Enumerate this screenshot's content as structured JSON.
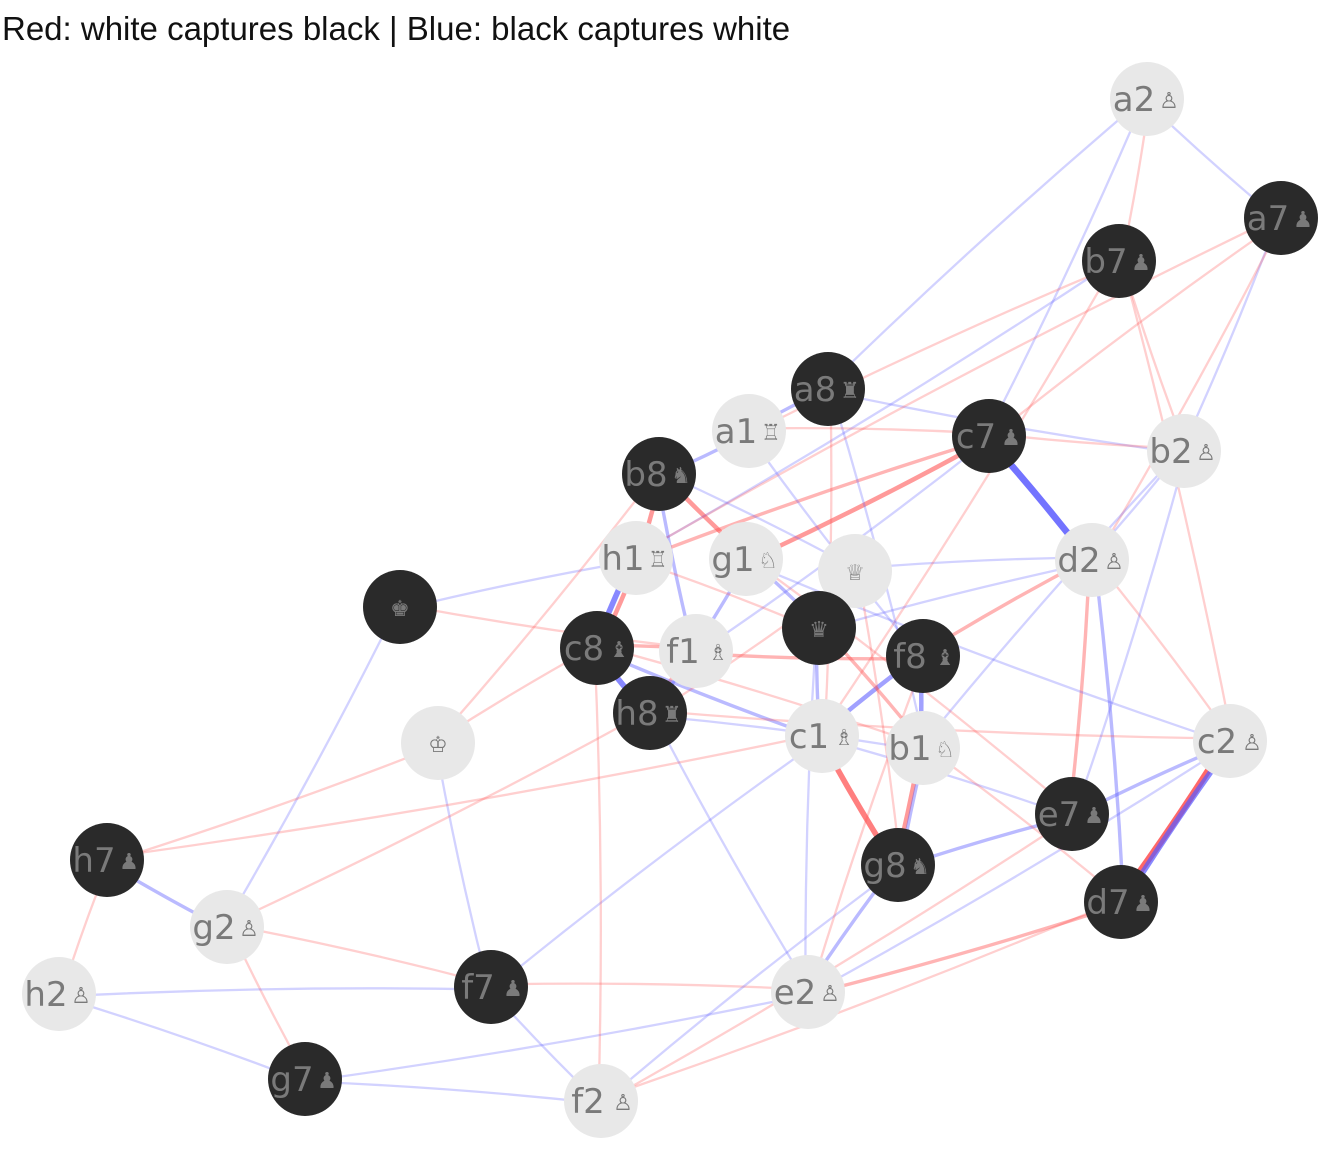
{
  "title": "Red: white captures black | Blue: black captures white",
  "colors": {
    "white_node": "#e8e8e8",
    "black_node": "#2a2a2a",
    "label": "#7a7a7a",
    "white_captures": "#ff4d4d",
    "black_captures": "#5a5aff"
  },
  "nodes": [
    {
      "id": "a2",
      "label": "a2",
      "glyph": "♙",
      "side": "white"
    },
    {
      "id": "a7",
      "label": "a7",
      "glyph": "♟",
      "side": "black"
    },
    {
      "id": "b7",
      "label": "b7",
      "glyph": "♟",
      "side": "black"
    },
    {
      "id": "a8",
      "label": "a8",
      "glyph": "♜",
      "side": "black"
    },
    {
      "id": "a1",
      "label": "a1",
      "glyph": "♖",
      "side": "white"
    },
    {
      "id": "c7",
      "label": "c7",
      "glyph": "♟",
      "side": "black"
    },
    {
      "id": "b2",
      "label": "b2",
      "glyph": "♙",
      "side": "white"
    },
    {
      "id": "b8",
      "label": "b8",
      "glyph": "♞",
      "side": "black"
    },
    {
      "id": "h1",
      "label": "h1",
      "glyph": "♖",
      "side": "white"
    },
    {
      "id": "g1",
      "label": "g1",
      "glyph": "♘",
      "side": "white"
    },
    {
      "id": "wq",
      "label": "",
      "glyph": "♕",
      "side": "white"
    },
    {
      "id": "d2",
      "label": "d2",
      "glyph": "♙",
      "side": "white"
    },
    {
      "id": "bk",
      "label": "",
      "glyph": "♚",
      "side": "black"
    },
    {
      "id": "c8",
      "label": "c8",
      "glyph": "♝",
      "side": "black"
    },
    {
      "id": "f1",
      "label": "f1",
      "glyph": "♗",
      "side": "white"
    },
    {
      "id": "bq",
      "label": "",
      "glyph": "♛",
      "side": "black"
    },
    {
      "id": "f8",
      "label": "f8",
      "glyph": "♝",
      "side": "black"
    },
    {
      "id": "h8",
      "label": "h8",
      "glyph": "♜",
      "side": "black"
    },
    {
      "id": "wk",
      "label": "",
      "glyph": "♔",
      "side": "white"
    },
    {
      "id": "c1",
      "label": "c1",
      "glyph": "♗",
      "side": "white"
    },
    {
      "id": "b1",
      "label": "b1",
      "glyph": "♘",
      "side": "white"
    },
    {
      "id": "c2",
      "label": "c2",
      "glyph": "♙",
      "side": "white"
    },
    {
      "id": "e7",
      "label": "e7",
      "glyph": "♟",
      "side": "black"
    },
    {
      "id": "h7",
      "label": "h7",
      "glyph": "♟",
      "side": "black"
    },
    {
      "id": "g8",
      "label": "g8",
      "glyph": "♞",
      "side": "black"
    },
    {
      "id": "d7",
      "label": "d7",
      "glyph": "♟",
      "side": "black"
    },
    {
      "id": "g2",
      "label": "g2",
      "glyph": "♙",
      "side": "white"
    },
    {
      "id": "h2",
      "label": "h2",
      "glyph": "♙",
      "side": "white"
    },
    {
      "id": "f7",
      "label": "f7",
      "glyph": "♟",
      "side": "black"
    },
    {
      "id": "e2",
      "label": "e2",
      "glyph": "♙",
      "side": "white"
    },
    {
      "id": "g7",
      "label": "g7",
      "glyph": "♟",
      "side": "black"
    },
    {
      "id": "f2",
      "label": "f2",
      "glyph": "♙",
      "side": "white"
    }
  ],
  "edges": [
    {
      "from": "c7",
      "to": "d2",
      "kind": "black",
      "weight": 5
    },
    {
      "from": "d7",
      "to": "c2",
      "kind": "white",
      "weight": 5
    },
    {
      "from": "d7",
      "to": "c2",
      "kind": "black",
      "weight": 4
    },
    {
      "from": "h1",
      "to": "c8",
      "kind": "black",
      "weight": 4
    },
    {
      "from": "h1",
      "to": "c8",
      "kind": "white",
      "weight": 3
    },
    {
      "from": "c8",
      "to": "h8",
      "kind": "black",
      "weight": 4
    },
    {
      "from": "g8",
      "to": "c1",
      "kind": "white",
      "weight": 4
    },
    {
      "from": "f8",
      "to": "c1",
      "kind": "black",
      "weight": 3
    },
    {
      "from": "f8",
      "to": "b1",
      "kind": "black",
      "weight": 3
    },
    {
      "from": "g8",
      "to": "b1",
      "kind": "white",
      "weight": 3
    },
    {
      "from": "g8",
      "to": "b1",
      "kind": "black",
      "weight": 2
    },
    {
      "from": "b8",
      "to": "g1",
      "kind": "white",
      "weight": 3
    },
    {
      "from": "b8",
      "to": "h1",
      "kind": "white",
      "weight": 3
    },
    {
      "from": "b8",
      "to": "f1",
      "kind": "black",
      "weight": 2
    },
    {
      "from": "c7",
      "to": "g1",
      "kind": "white",
      "weight": 3
    },
    {
      "from": "c7",
      "to": "h1",
      "kind": "white",
      "weight": 2
    },
    {
      "from": "a8",
      "to": "a1",
      "kind": "black",
      "weight": 2
    },
    {
      "from": "b8",
      "to": "a1",
      "kind": "black",
      "weight": 2
    },
    {
      "from": "e7",
      "to": "c2",
      "kind": "black",
      "weight": 2
    },
    {
      "from": "e7",
      "to": "d2",
      "kind": "white",
      "weight": 2
    },
    {
      "from": "d7",
      "to": "e2",
      "kind": "white",
      "weight": 2
    },
    {
      "from": "g8",
      "to": "e2",
      "kind": "black",
      "weight": 2
    },
    {
      "from": "g8",
      "to": "e7",
      "kind": "black",
      "weight": 2
    },
    {
      "from": "d7",
      "to": "d2",
      "kind": "black",
      "weight": 2
    },
    {
      "from": "f8",
      "to": "d2",
      "kind": "white",
      "weight": 2
    },
    {
      "from": "bq",
      "to": "c1",
      "kind": "black",
      "weight": 2
    },
    {
      "from": "bq",
      "to": "b1",
      "kind": "white",
      "weight": 2
    },
    {
      "from": "bq",
      "to": "g1",
      "kind": "black",
      "weight": 2
    },
    {
      "from": "h8",
      "to": "f1",
      "kind": "white",
      "weight": 2
    },
    {
      "from": "h8",
      "to": "g1",
      "kind": "black",
      "weight": 2
    },
    {
      "from": "c8",
      "to": "f1",
      "kind": "white",
      "weight": 2
    },
    {
      "from": "c8",
      "to": "c1",
      "kind": "black",
      "weight": 2
    },
    {
      "from": "f8",
      "to": "f1",
      "kind": "white",
      "weight": 2
    },
    {
      "from": "h7",
      "to": "g2",
      "kind": "black",
      "weight": 2
    },
    {
      "from": "a2",
      "to": "b7",
      "kind": "white",
      "weight": 1
    },
    {
      "from": "a2",
      "to": "a7",
      "kind": "black",
      "weight": 1
    },
    {
      "from": "a2",
      "to": "c7",
      "kind": "black",
      "weight": 1
    },
    {
      "from": "a2",
      "to": "a8",
      "kind": "black",
      "weight": 1
    },
    {
      "from": "a7",
      "to": "b2",
      "kind": "black",
      "weight": 1
    },
    {
      "from": "a7",
      "to": "c7",
      "kind": "white",
      "weight": 1
    },
    {
      "from": "a7",
      "to": "d2",
      "kind": "white",
      "weight": 1
    },
    {
      "from": "b7",
      "to": "a1",
      "kind": "white",
      "weight": 1
    },
    {
      "from": "b7",
      "to": "c2",
      "kind": "white",
      "weight": 1
    },
    {
      "from": "b7",
      "to": "b2",
      "kind": "white",
      "weight": 1
    },
    {
      "from": "b7",
      "to": "h1",
      "kind": "black",
      "weight": 1
    },
    {
      "from": "a8",
      "to": "b2",
      "kind": "black",
      "weight": 1
    },
    {
      "from": "a8",
      "to": "c1",
      "kind": "white",
      "weight": 1
    },
    {
      "from": "c7",
      "to": "b2",
      "kind": "white",
      "weight": 1
    },
    {
      "from": "b2",
      "to": "d2",
      "kind": "black",
      "weight": 1
    },
    {
      "from": "b2",
      "to": "b1",
      "kind": "black",
      "weight": 1
    },
    {
      "from": "d2",
      "to": "c2",
      "kind": "white",
      "weight": 1
    },
    {
      "from": "d2",
      "to": "wq",
      "kind": "black",
      "weight": 1
    },
    {
      "from": "bk",
      "to": "h1",
      "kind": "black",
      "weight": 1
    },
    {
      "from": "bk",
      "to": "f1",
      "kind": "white",
      "weight": 1
    },
    {
      "from": "bk",
      "to": "g2",
      "kind": "black",
      "weight": 1
    },
    {
      "from": "wk",
      "to": "b8",
      "kind": "white",
      "weight": 1
    },
    {
      "from": "wk",
      "to": "h7",
      "kind": "white",
      "weight": 1
    },
    {
      "from": "wk",
      "to": "f7",
      "kind": "black",
      "weight": 1
    },
    {
      "from": "wk",
      "to": "c8",
      "kind": "white",
      "weight": 1
    },
    {
      "from": "h7",
      "to": "h2",
      "kind": "white",
      "weight": 1
    },
    {
      "from": "h2",
      "to": "g7",
      "kind": "black",
      "weight": 1
    },
    {
      "from": "g2",
      "to": "g7",
      "kind": "white",
      "weight": 1
    },
    {
      "from": "g2",
      "to": "f7",
      "kind": "white",
      "weight": 1
    },
    {
      "from": "g2",
      "to": "h8",
      "kind": "white",
      "weight": 1
    },
    {
      "from": "g7",
      "to": "f2",
      "kind": "black",
      "weight": 1
    },
    {
      "from": "g7",
      "to": "e2",
      "kind": "black",
      "weight": 1
    },
    {
      "from": "f7",
      "to": "e2",
      "kind": "white",
      "weight": 1
    },
    {
      "from": "f7",
      "to": "f2",
      "kind": "black",
      "weight": 1
    },
    {
      "from": "f7",
      "to": "c1",
      "kind": "black",
      "weight": 1
    },
    {
      "from": "f2",
      "to": "d7",
      "kind": "white",
      "weight": 1
    },
    {
      "from": "f2",
      "to": "g8",
      "kind": "black",
      "weight": 1
    },
    {
      "from": "f2",
      "to": "c8",
      "kind": "white",
      "weight": 1
    },
    {
      "from": "e2",
      "to": "h8",
      "kind": "black",
      "weight": 1
    },
    {
      "from": "e2",
      "to": "c2",
      "kind": "black",
      "weight": 1
    },
    {
      "from": "c1",
      "to": "e7",
      "kind": "black",
      "weight": 1
    },
    {
      "from": "c1",
      "to": "b7",
      "kind": "white",
      "weight": 1
    },
    {
      "from": "b1",
      "to": "d7",
      "kind": "white",
      "weight": 1
    },
    {
      "from": "b1",
      "to": "a8",
      "kind": "black",
      "weight": 1
    },
    {
      "from": "g1",
      "to": "e7",
      "kind": "white",
      "weight": 1
    },
    {
      "from": "g1",
      "to": "c2",
      "kind": "black",
      "weight": 1
    },
    {
      "from": "h1",
      "to": "a7",
      "kind": "white",
      "weight": 1
    },
    {
      "from": "f1",
      "to": "c7",
      "kind": "black",
      "weight": 1
    },
    {
      "from": "wq",
      "to": "h8",
      "kind": "white",
      "weight": 1
    },
    {
      "from": "wq",
      "to": "b8",
      "kind": "black",
      "weight": 1
    },
    {
      "from": "wq",
      "to": "g8",
      "kind": "white",
      "weight": 1
    },
    {
      "from": "bq",
      "to": "e2",
      "kind": "black",
      "weight": 1
    },
    {
      "from": "bq",
      "to": "d2",
      "kind": "black",
      "weight": 1
    },
    {
      "from": "bq",
      "to": "h1",
      "kind": "white",
      "weight": 1
    },
    {
      "from": "c8",
      "to": "b1",
      "kind": "white",
      "weight": 1
    },
    {
      "from": "h8",
      "to": "c2",
      "kind": "white",
      "weight": 1
    },
    {
      "from": "h8",
      "to": "b1",
      "kind": "black",
      "weight": 1
    },
    {
      "from": "f8",
      "to": "e2",
      "kind": "white",
      "weight": 1
    },
    {
      "from": "a1",
      "to": "c7",
      "kind": "white",
      "weight": 1
    },
    {
      "from": "a1",
      "to": "f8",
      "kind": "black",
      "weight": 1
    },
    {
      "from": "h2",
      "to": "f7",
      "kind": "black",
      "weight": 1
    },
    {
      "from": "h7",
      "to": "c1",
      "kind": "white",
      "weight": 1
    },
    {
      "from": "e7",
      "to": "f2",
      "kind": "white",
      "weight": 1
    },
    {
      "from": "e7",
      "to": "b2",
      "kind": "black",
      "weight": 1
    }
  ]
}
